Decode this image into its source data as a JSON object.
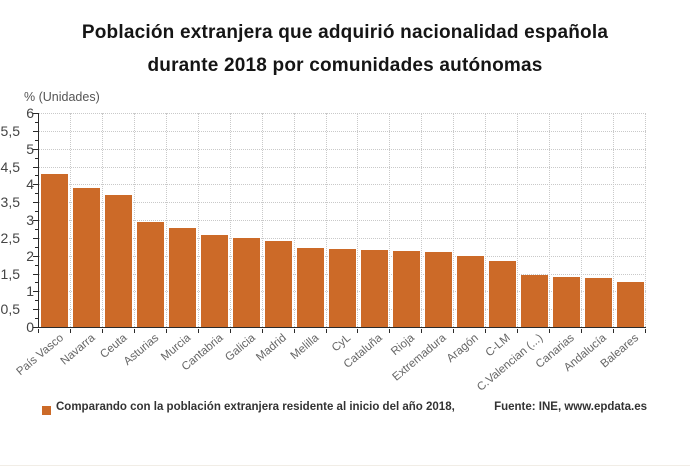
{
  "title": {
    "line1": "Población extranjera que adquirió nacionalidad española",
    "line2": "durante 2018 por comunidades autónomas"
  },
  "axis_unit_label": "% (Unidades)",
  "legend": {
    "label": "Comparando con la población extranjera residente al inicio del año 2018,"
  },
  "source": "Fuente: INE, www.epdata.es",
  "colors": {
    "bar": "#cc6a28",
    "grid": "#c9c9c9",
    "axis": "#2a2a2a",
    "title_text": "#151515",
    "x_label_text": "#666666",
    "y_label_text": "#444444",
    "legend_text": "#333333"
  },
  "chart_data": {
    "type": "bar",
    "title": "Población extranjera que adquirió nacionalidad española durante 2018 por comunidades autónomas",
    "xlabel": "",
    "ylabel": "% (Unidades)",
    "categories": [
      "País Vasco",
      "Navarra",
      "Ceuta",
      "Asturias",
      "Murcia",
      "Cantabria",
      "Galicia",
      "Madrid",
      "Melilla",
      "CyL",
      "Cataluña",
      "Rioja",
      "Extremadura",
      "Aragón",
      "C-LM",
      "C.Valencian (...)",
      "Canarias",
      "Andalucía",
      "Baleares"
    ],
    "values": [
      4.3,
      3.9,
      3.7,
      2.95,
      2.78,
      2.57,
      2.5,
      2.42,
      2.22,
      2.2,
      2.16,
      2.14,
      2.1,
      2.0,
      1.86,
      1.47,
      1.4,
      1.37,
      1.26
    ],
    "ylim": [
      0,
      6
    ],
    "ytick_step": 0.5,
    "ytick_labels": [
      "0",
      "0,5",
      "1",
      "1,5",
      "2",
      "2,5",
      "3",
      "3,5",
      "4",
      "4,5",
      "5",
      "5,5",
      "6"
    ],
    "grid": true,
    "legend_position": "bottom-left"
  }
}
